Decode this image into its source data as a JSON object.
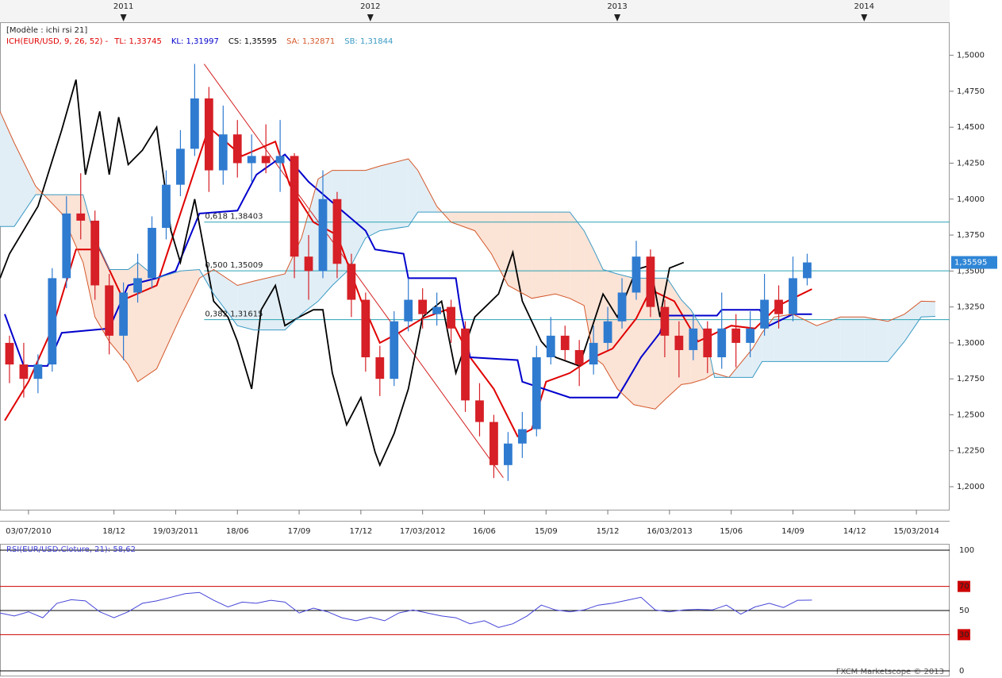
{
  "chart_data": [
    {
      "type": "candlestick",
      "title": "[Modèle : ichi rsi 21]",
      "subtitle": "ICH(EUR/USD, 9, 26, 52) -",
      "up_color": "#2f7bd0",
      "down_color": "#d61f26",
      "x": [
        1,
        4,
        7,
        10,
        13,
        16,
        19,
        22,
        25,
        28,
        31,
        34,
        37,
        40,
        43,
        46,
        49,
        52,
        55,
        58,
        61,
        64,
        67,
        70,
        73,
        76,
        79,
        82,
        85,
        88,
        91,
        94,
        97,
        100,
        103,
        106,
        109,
        112,
        115,
        118,
        121,
        124,
        127,
        130,
        133,
        136,
        139,
        142,
        145,
        148,
        151,
        154,
        157,
        160,
        163,
        166,
        169
      ],
      "open": [
        1.3,
        1.285,
        1.275,
        1.285,
        1.345,
        1.39,
        1.385,
        1.34,
        1.305,
        1.335,
        1.345,
        1.38,
        1.41,
        1.435,
        1.47,
        1.42,
        1.445,
        1.425,
        1.43,
        1.425,
        1.43,
        1.36,
        1.35,
        1.4,
        1.355,
        1.33,
        1.29,
        1.275,
        1.315,
        1.33,
        1.32,
        1.325,
        1.31,
        1.26,
        1.245,
        1.215,
        1.23,
        1.24,
        1.29,
        1.305,
        1.295,
        1.285,
        1.3,
        1.315,
        1.335,
        1.36,
        1.325,
        1.305,
        1.295,
        1.31,
        1.29,
        1.31,
        1.3,
        1.31,
        1.33,
        1.32,
        1.345
      ],
      "high": [
        1.305,
        1.3,
        1.292,
        1.352,
        1.402,
        1.418,
        1.392,
        1.348,
        1.342,
        1.362,
        1.388,
        1.42,
        1.448,
        1.494,
        1.478,
        1.465,
        1.455,
        1.445,
        1.452,
        1.455,
        1.432,
        1.375,
        1.42,
        1.405,
        1.362,
        1.335,
        1.298,
        1.322,
        1.345,
        1.338,
        1.335,
        1.33,
        1.315,
        1.272,
        1.25,
        1.238,
        1.252,
        1.298,
        1.318,
        1.312,
        1.302,
        1.312,
        1.325,
        1.345,
        1.371,
        1.365,
        1.33,
        1.315,
        1.32,
        1.315,
        1.335,
        1.32,
        1.322,
        1.348,
        1.34,
        1.36,
        1.362
      ],
      "low": [
        1.272,
        1.262,
        1.265,
        1.28,
        1.338,
        1.372,
        1.33,
        1.292,
        1.288,
        1.328,
        1.338,
        1.372,
        1.402,
        1.43,
        1.405,
        1.41,
        1.415,
        1.412,
        1.418,
        1.405,
        1.345,
        1.33,
        1.345,
        1.345,
        1.318,
        1.28,
        1.263,
        1.27,
        1.308,
        1.31,
        1.312,
        1.3,
        1.252,
        1.235,
        1.206,
        1.204,
        1.22,
        1.235,
        1.285,
        1.288,
        1.27,
        1.278,
        1.295,
        1.31,
        1.33,
        1.318,
        1.29,
        1.276,
        1.288,
        1.279,
        1.282,
        1.283,
        1.29,
        1.305,
        1.31,
        1.315,
        1.34
      ],
      "close": [
        1.285,
        1.275,
        1.285,
        1.345,
        1.39,
        1.385,
        1.34,
        1.305,
        1.335,
        1.345,
        1.38,
        1.41,
        1.435,
        1.47,
        1.42,
        1.445,
        1.425,
        1.43,
        1.425,
        1.43,
        1.36,
        1.35,
        1.4,
        1.355,
        1.33,
        1.29,
        1.275,
        1.315,
        1.33,
        1.32,
        1.325,
        1.31,
        1.26,
        1.245,
        1.215,
        1.23,
        1.24,
        1.29,
        1.305,
        1.295,
        1.285,
        1.3,
        1.315,
        1.335,
        1.36,
        1.325,
        1.305,
        1.295,
        1.31,
        1.29,
        1.31,
        1.3,
        1.31,
        1.33,
        1.32,
        1.345,
        1.35595
      ],
      "series": [
        {
          "name": "TL: 1,33745",
          "color": "#e00000",
          "x": [
            0,
            5,
            10,
            15,
            20,
            25,
            32,
            38,
            43,
            50,
            57,
            60,
            65,
            70,
            75,
            79,
            83,
            88,
            93,
            98,
            103,
            108,
            111,
            114,
            119,
            124,
            128,
            133,
            136,
            141,
            146,
            153,
            158,
            163,
            166,
            170
          ],
          "values": [
            1.246,
            1.273,
            1.31,
            1.365,
            1.365,
            1.33,
            1.34,
            1.4,
            1.45,
            1.43,
            1.44,
            1.41,
            1.384,
            1.375,
            1.33,
            1.3,
            1.307,
            1.317,
            1.323,
            1.29,
            1.268,
            1.235,
            1.24,
            1.273,
            1.279,
            1.29,
            1.296,
            1.317,
            1.337,
            1.329,
            1.301,
            1.312,
            1.31,
            1.326,
            1.331,
            1.33745
          ]
        },
        {
          "name": "KL: 1,31997",
          "color": "#0000cc",
          "x": [
            0,
            4,
            9,
            12,
            22,
            26,
            32,
            36,
            41,
            49,
            53,
            59,
            64,
            71,
            76,
            78,
            84,
            85,
            95,
            96,
            98,
            108,
            109,
            119,
            129,
            131,
            134,
            138,
            139,
            150,
            151,
            159,
            161,
            166,
            170
          ],
          "values": [
            1.32,
            1.284,
            1.284,
            1.307,
            1.31,
            1.34,
            1.345,
            1.35,
            1.39,
            1.392,
            1.417,
            1.431,
            1.412,
            1.392,
            1.378,
            1.365,
            1.362,
            1.345,
            1.345,
            1.323,
            1.29,
            1.288,
            1.273,
            1.262,
            1.262,
            1.273,
            1.29,
            1.307,
            1.319,
            1.319,
            1.323,
            1.323,
            1.312,
            1.32,
            1.31997
          ]
        },
        {
          "name": "CS: 1,35595",
          "color": "#000000",
          "x": [
            -1,
            1,
            7,
            12,
            15,
            17,
            20,
            22,
            24,
            26,
            29,
            32,
            35,
            37,
            40,
            44,
            47,
            49,
            52,
            54,
            57,
            59,
            62,
            65,
            67,
            69,
            72,
            75,
            78,
            79,
            82,
            85,
            88,
            92,
            95,
            99,
            104,
            107,
            109,
            113,
            116,
            121,
            126,
            129,
            133,
            136,
            138,
            140,
            143
          ],
          "values": [
            1.345,
            1.362,
            1.395,
            1.448,
            1.483,
            1.417,
            1.461,
            1.417,
            1.457,
            1.424,
            1.434,
            1.45,
            1.378,
            1.356,
            1.4,
            1.329,
            1.318,
            1.301,
            1.268,
            1.323,
            1.34,
            1.312,
            1.318,
            1.323,
            1.323,
            1.279,
            1.243,
            1.262,
            1.224,
            1.215,
            1.237,
            1.268,
            1.318,
            1.329,
            1.279,
            1.318,
            1.334,
            1.363,
            1.329,
            1.301,
            1.29,
            1.284,
            1.334,
            1.318,
            1.351,
            1.354,
            1.318,
            1.352,
            1.35595
          ]
        },
        {
          "name": "SA: 1,32871",
          "color": "#d4582a",
          "x": [
            -1,
            2,
            6.5,
            12,
            16.5,
            19,
            22,
            26,
            28,
            32,
            37,
            41,
            44,
            49,
            52.5,
            59,
            62.5,
            66,
            69,
            72.5,
            76,
            79,
            85,
            87,
            91,
            94,
            99,
            102.5,
            106,
            111,
            116,
            119,
            122,
            124,
            126,
            129,
            132.5,
            137,
            139.5,
            142.5,
            144.5,
            147.5,
            149.5,
            152.5,
            157.5,
            159.5,
            162,
            166,
            171,
            176,
            181,
            186,
            189.5,
            193,
            196
          ],
          "values": [
            1.461,
            1.439,
            1.409,
            1.39,
            1.356,
            1.318,
            1.301,
            1.285,
            1.273,
            1.282,
            1.318,
            1.345,
            1.351,
            1.34,
            1.343,
            1.348,
            1.373,
            1.414,
            1.42,
            1.42,
            1.42,
            1.423,
            1.428,
            1.42,
            1.395,
            1.384,
            1.378,
            1.362,
            1.34,
            1.331,
            1.334,
            1.331,
            1.326,
            1.29,
            1.285,
            1.268,
            1.257,
            1.254,
            1.262,
            1.271,
            1.272,
            1.275,
            1.279,
            1.276,
            1.296,
            1.307,
            1.318,
            1.32,
            1.312,
            1.318,
            1.318,
            1.315,
            1.32,
            1.329,
            1.32871
          ]
        },
        {
          "name": "SB: 1,31844",
          "color": "#3a9ac4",
          "x": [
            -1,
            2,
            6.5,
            12,
            16.5,
            19,
            22,
            26,
            28,
            32,
            37,
            41,
            44,
            49,
            52.5,
            59,
            62.5,
            66,
            69,
            72.5,
            76,
            79,
            85,
            87,
            91,
            94,
            99,
            102.5,
            106,
            111,
            116,
            119,
            122,
            124,
            126,
            129,
            132.5,
            137,
            139.5,
            142.5,
            144.5,
            147.5,
            149.5,
            152.5,
            157.5,
            159.5,
            162,
            166,
            171,
            176,
            181,
            186,
            189.5,
            193,
            196
          ],
          "values": [
            1.381,
            1.381,
            1.403,
            1.403,
            1.403,
            1.373,
            1.351,
            1.351,
            1.356,
            1.345,
            1.35,
            1.351,
            1.334,
            1.312,
            1.309,
            1.309,
            1.32,
            1.329,
            1.34,
            1.351,
            1.373,
            1.378,
            1.381,
            1.391,
            1.391,
            1.391,
            1.391,
            1.391,
            1.391,
            1.391,
            1.391,
            1.391,
            1.378,
            1.365,
            1.351,
            1.348,
            1.345,
            1.345,
            1.345,
            1.33,
            1.323,
            1.307,
            1.276,
            1.276,
            1.276,
            1.287,
            1.287,
            1.287,
            1.287,
            1.287,
            1.287,
            1.287,
            1.301,
            1.318,
            1.31844
          ]
        }
      ],
      "cloud_fill": {
        "rising": "#e1eef6",
        "falling": "#fbe3d6"
      },
      "fibonacci": {
        "line_color": "#d42020",
        "level_color": "#2aa3b4",
        "start": [
          42,
          1.49391
        ],
        "end": [
          105,
          1.20628
        ],
        "levels": [
          {
            "label": "0,618 1,38403",
            "value": 1.38403
          },
          {
            "label": "0,500 1,35009",
            "value": 1.35009
          },
          {
            "label": "0,382 1,31615",
            "value": 1.31615
          }
        ]
      },
      "last_price": {
        "value": 1.35595,
        "label": "1,35595"
      },
      "xlim": [
        -1,
        199
      ],
      "xticks": [
        {
          "value": 5,
          "label": "03/07/2010"
        },
        {
          "value": 23,
          "label": "18/12"
        },
        {
          "value": 36,
          "label": "19/03/2011"
        },
        {
          "value": 49,
          "label": "18/06"
        },
        {
          "value": 62,
          "label": "17/09"
        },
        {
          "value": 75,
          "label": "17/12"
        },
        {
          "value": 88,
          "label": "17/03/2012"
        },
        {
          "value": 101,
          "label": "16/06"
        },
        {
          "value": 114,
          "label": "15/09"
        },
        {
          "value": 127,
          "label": "15/12"
        },
        {
          "value": 140,
          "label": "16/03/2013"
        },
        {
          "value": 153,
          "label": "15/06"
        },
        {
          "value": 166,
          "label": "14/09"
        },
        {
          "value": 179,
          "label": "14/12"
        },
        {
          "value": 192,
          "label": "15/03/2014"
        }
      ],
      "x2ticks": [
        {
          "value": 25,
          "label": "2011"
        },
        {
          "value": 77,
          "label": "2012"
        },
        {
          "value": 129,
          "label": "2013"
        },
        {
          "value": 181,
          "label": "2014"
        }
      ],
      "ylim": [
        1.184,
        1.523
      ],
      "yticks": [
        {
          "value": 1.2,
          "label": "1,2000"
        },
        {
          "value": 1.225,
          "label": "1,2250"
        },
        {
          "value": 1.25,
          "label": "1,2500"
        },
        {
          "value": 1.275,
          "label": "1,2750"
        },
        {
          "value": 1.3,
          "label": "1,3000"
        },
        {
          "value": 1.325,
          "label": "1,3250"
        },
        {
          "value": 1.35,
          "label": "1,3500"
        },
        {
          "value": 1.375,
          "label": "1,3750"
        },
        {
          "value": 1.4,
          "label": "1,4000"
        },
        {
          "value": 1.425,
          "label": "1,4250"
        },
        {
          "value": 1.45,
          "label": "1,4500"
        },
        {
          "value": 1.475,
          "label": "1,4750"
        },
        {
          "value": 1.5,
          "label": "1,5000"
        }
      ]
    },
    {
      "type": "line",
      "title": "RSI(EUR/USD.Cloture, 21): 58,62",
      "color": "#4545d8",
      "x": [
        -1,
        2,
        5,
        8,
        11,
        14,
        17,
        20,
        23,
        26,
        29,
        32,
        35,
        38,
        41,
        44,
        47,
        50,
        53,
        56,
        59,
        62,
        65,
        68,
        71,
        74,
        77,
        80,
        83,
        86,
        89,
        92,
        95,
        98,
        101,
        104,
        107,
        110,
        113,
        116,
        119,
        122,
        125,
        128,
        131,
        134,
        137,
        140,
        143,
        146,
        149,
        152,
        155,
        158,
        161,
        164,
        167,
        170
      ],
      "values": [
        48,
        45.5,
        49,
        44,
        56,
        59,
        58,
        49,
        44,
        49,
        56,
        58,
        61,
        64,
        65,
        58.5,
        53,
        57,
        56,
        58.5,
        57,
        48,
        52,
        49,
        44,
        41.5,
        44.5,
        41.5,
        48,
        50.5,
        48,
        45.5,
        44,
        39,
        41.5,
        36,
        39,
        45.5,
        54.5,
        50.5,
        49,
        50.5,
        54.5,
        56,
        58.5,
        61,
        50.5,
        49,
        50.5,
        51,
        50.5,
        54.5,
        47,
        53,
        56,
        52.5,
        58.5,
        58.62
      ],
      "xlim": [
        -1,
        199
      ],
      "ylim": [
        -4.6,
        105.3
      ],
      "yticks": [
        100,
        70,
        50,
        30,
        0
      ],
      "level_colors": [
        "#000000",
        "#cc0000",
        "#000000",
        "#cc0000",
        "#000000"
      ]
    }
  ],
  "footer": "FXCM Marketscope © 2013"
}
